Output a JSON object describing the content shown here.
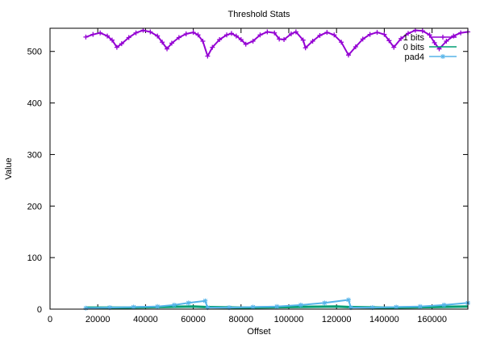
{
  "chart_data": {
    "type": "scatter",
    "title": "Threshold Stats",
    "xlabel": "Offset",
    "ylabel": "Value",
    "xlim": [
      0,
      175000
    ],
    "ylim": [
      0,
      545
    ],
    "x_ticks": [
      0,
      20000,
      40000,
      60000,
      80000,
      100000,
      120000,
      140000,
      160000
    ],
    "y_ticks": [
      0,
      100,
      200,
      300,
      400,
      500
    ],
    "grid": false,
    "legend_position": "top-right",
    "series": [
      {
        "name": "1 bits",
        "color": "#9400d3",
        "marker": "plus",
        "points": [
          [
            15000,
            528
          ],
          [
            18000,
            533
          ],
          [
            21000,
            536
          ],
          [
            24000,
            530
          ],
          [
            26000,
            522
          ],
          [
            28000,
            508
          ],
          [
            30000,
            515
          ],
          [
            33000,
            527
          ],
          [
            36000,
            536
          ],
          [
            39000,
            541
          ],
          [
            42000,
            538
          ],
          [
            45000,
            530
          ],
          [
            47000,
            518
          ],
          [
            49000,
            505
          ],
          [
            51000,
            516
          ],
          [
            54000,
            527
          ],
          [
            57000,
            534
          ],
          [
            60000,
            537
          ],
          [
            62000,
            532
          ],
          [
            64000,
            520
          ],
          [
            66000,
            491
          ],
          [
            68000,
            508
          ],
          [
            71000,
            523
          ],
          [
            74000,
            532
          ],
          [
            76000,
            535
          ],
          [
            78000,
            530
          ],
          [
            80000,
            523
          ],
          [
            82000,
            514
          ],
          [
            85000,
            520
          ],
          [
            88000,
            532
          ],
          [
            91000,
            538
          ],
          [
            94000,
            536
          ],
          [
            96000,
            524
          ],
          [
            98000,
            523
          ],
          [
            101000,
            534
          ],
          [
            103000,
            538
          ],
          [
            106000,
            522
          ],
          [
            107000,
            507
          ],
          [
            110000,
            520
          ],
          [
            113000,
            531
          ],
          [
            116000,
            537
          ],
          [
            119000,
            532
          ],
          [
            122000,
            518
          ],
          [
            125000,
            493
          ],
          [
            128000,
            509
          ],
          [
            131000,
            524
          ],
          [
            134000,
            533
          ],
          [
            137000,
            537
          ],
          [
            140000,
            533
          ],
          [
            142000,
            521
          ],
          [
            144000,
            508
          ],
          [
            147000,
            525
          ],
          [
            150000,
            535
          ],
          [
            153000,
            541
          ],
          [
            156000,
            540
          ],
          [
            159000,
            532
          ],
          [
            161000,
            517
          ],
          [
            163000,
            505
          ],
          [
            166000,
            520
          ],
          [
            169000,
            530
          ],
          [
            172000,
            536
          ],
          [
            175000,
            538
          ]
        ]
      },
      {
        "name": "0 bits",
        "color": "#009e73",
        "marker": "line",
        "points": [
          [
            15000,
            3
          ],
          [
            30000,
            3
          ],
          [
            45000,
            4
          ],
          [
            60000,
            5
          ],
          [
            65000,
            4
          ],
          [
            80000,
            3
          ],
          [
            100000,
            4
          ],
          [
            120000,
            5
          ],
          [
            125000,
            4
          ],
          [
            140000,
            3
          ],
          [
            160000,
            4
          ],
          [
            175000,
            5
          ]
        ]
      },
      {
        "name": "pad4",
        "color": "#56b4e9",
        "marker": "star",
        "points": [
          [
            15000,
            2
          ],
          [
            25000,
            3
          ],
          [
            35000,
            4
          ],
          [
            45000,
            5
          ],
          [
            52000,
            8
          ],
          [
            58000,
            12
          ],
          [
            65000,
            16
          ],
          [
            66000,
            3
          ],
          [
            75000,
            3
          ],
          [
            85000,
            4
          ],
          [
            95000,
            5
          ],
          [
            105000,
            8
          ],
          [
            115000,
            12
          ],
          [
            125000,
            18
          ],
          [
            126000,
            3
          ],
          [
            135000,
            3
          ],
          [
            145000,
            4
          ],
          [
            155000,
            5
          ],
          [
            165000,
            8
          ],
          [
            175000,
            12
          ]
        ]
      }
    ]
  }
}
